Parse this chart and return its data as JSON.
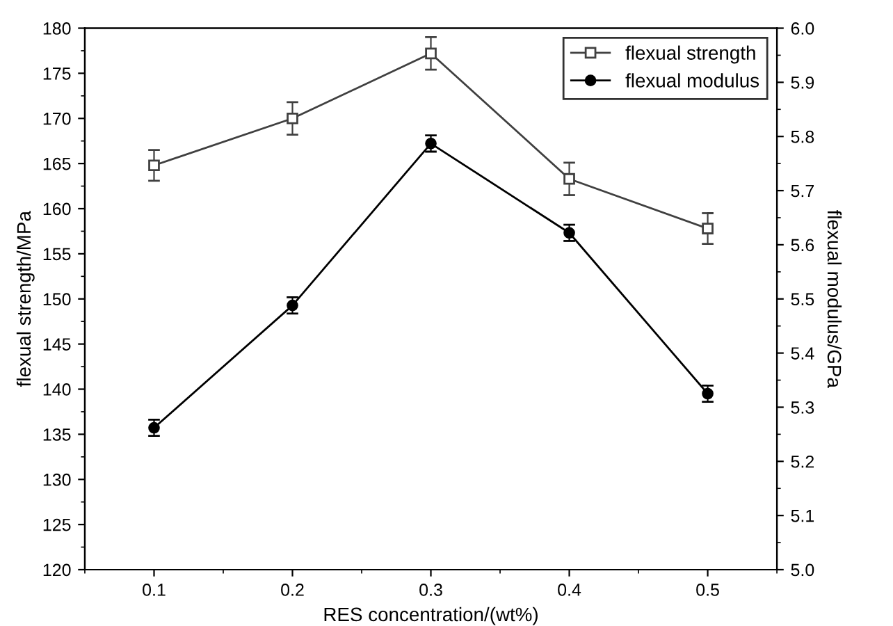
{
  "chart_data": {
    "type": "line",
    "xlabel": "RES concentration/(wt%)",
    "ylabel": "flexual strength/MPa",
    "y2label": "flexual modulus/GPa",
    "x": [
      0.1,
      0.2,
      0.3,
      0.4,
      0.5
    ],
    "series": [
      {
        "name": "flexual strength",
        "color": "#404040",
        "marker": "square",
        "values": [
          164.8,
          170.0,
          177.2,
          163.3,
          157.8
        ],
        "errors": [
          1.7,
          1.8,
          1.8,
          1.8,
          1.7
        ]
      },
      {
        "name": "flexual modulus",
        "color": "#000000",
        "marker": "circle",
        "axis": "y2",
        "values": [
          5.262,
          5.488,
          5.787,
          5.622,
          5.325
        ],
        "errors": [
          0.015,
          0.015,
          0.015,
          0.015,
          0.015
        ]
      }
    ],
    "xlim": [
      0.05,
      0.55
    ],
    "xticks": [
      0.1,
      0.2,
      0.3,
      0.4,
      0.5
    ],
    "ylim": [
      120,
      180
    ],
    "yticks": [
      120,
      125,
      130,
      135,
      140,
      145,
      150,
      155,
      160,
      165,
      170,
      175,
      180
    ],
    "y2lim": [
      5.0,
      6.0
    ],
    "y2ticks": [
      {
        "value": 5.0,
        "label": "5.0"
      },
      {
        "value": 5.1,
        "label": "5.1"
      },
      {
        "value": 5.2,
        "label": "5.2"
      },
      {
        "value": 5.3,
        "label": "5.3"
      },
      {
        "value": 5.4,
        "label": "5.4"
      },
      {
        "value": 5.5,
        "label": "5.5"
      },
      {
        "value": 5.6,
        "label": "5.6"
      },
      {
        "value": 5.7,
        "label": "5.7"
      },
      {
        "value": 5.8,
        "label": "5.8"
      },
      {
        "value": 5.9,
        "label": "5.9"
      },
      {
        "value": 6.0,
        "label": "6.0"
      }
    ],
    "legend": "top right",
    "grid": false
  }
}
